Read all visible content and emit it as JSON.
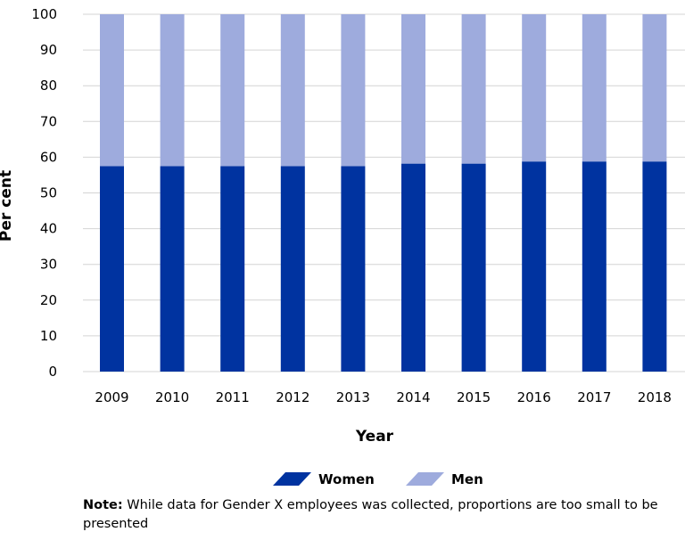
{
  "chart_data": {
    "type": "bar",
    "stacked": true,
    "categories": [
      "2009",
      "2010",
      "2011",
      "2012",
      "2013",
      "2014",
      "2015",
      "2016",
      "2017",
      "2018"
    ],
    "series": [
      {
        "name": "Women",
        "color": "#0033a0",
        "values": [
          57.5,
          57.5,
          57.5,
          57.5,
          57.5,
          58.2,
          58.2,
          58.8,
          58.8,
          58.8
        ]
      },
      {
        "name": "Men",
        "color": "#9eabdd",
        "values": [
          42.5,
          42.5,
          42.5,
          42.5,
          42.5,
          41.8,
          41.8,
          41.2,
          41.2,
          41.2
        ]
      }
    ],
    "xlabel": "Year",
    "ylabel": "Per cent",
    "ylim": [
      0,
      100
    ],
    "yticks": [
      "0",
      "10",
      "20",
      "30",
      "40",
      "50",
      "60",
      "70",
      "80",
      "90",
      "100"
    ],
    "grid": true,
    "legend_position": "bottom"
  },
  "note": {
    "label": "Note:",
    "text": " While data for Gender X employees was collected, proportions are too small to be presented"
  }
}
